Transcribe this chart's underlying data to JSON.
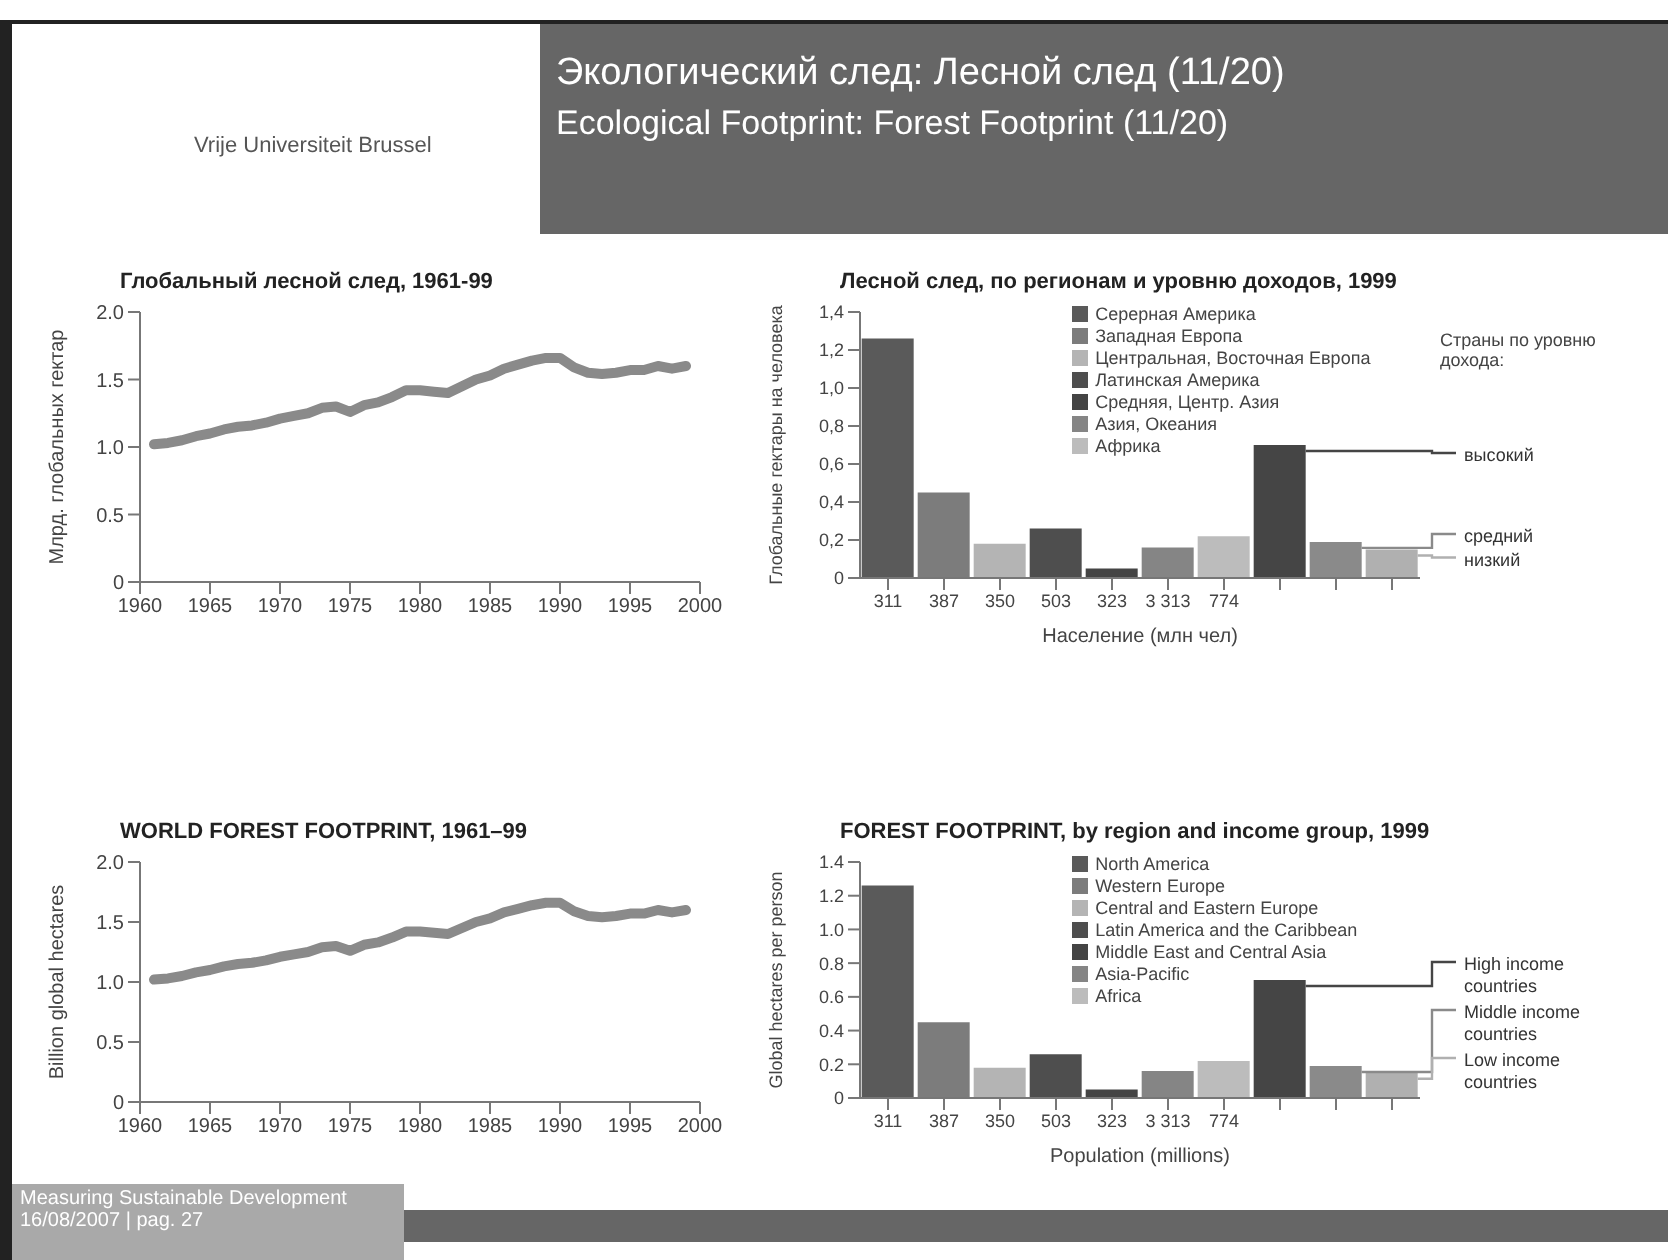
{
  "chart_data": [
    {
      "type": "line",
      "title": "Глобальный лесной след, 1961-99",
      "ylabel": "Млрд. глобальных гектар",
      "annotations": [
        "Vrije Universiteit Brussel",
        "Экологический след: Лесной след (11/20)",
        "Ecological Footprint: Forest Footprint (11/20)",
        "Measuring Sustainable Development",
        "16/08/2007  |  pag. 27"
      ],
      "x": [
        1961,
        1962,
        1963,
        1964,
        1965,
        1966,
        1967,
        1968,
        1969,
        1970,
        1971,
        1972,
        1973,
        1974,
        1975,
        1976,
        1977,
        1978,
        1979,
        1980,
        1981,
        1982,
        1983,
        1984,
        1985,
        1986,
        1987,
        1988,
        1989,
        1990,
        1991,
        1992,
        1993,
        1994,
        1995,
        1996,
        1997,
        1998,
        1999
      ],
      "series": [
        {
          "color": "#8a8a8a",
          "values": [
            1.02,
            1.03,
            1.05,
            1.08,
            1.1,
            1.13,
            1.15,
            1.16,
            1.18,
            1.21,
            1.23,
            1.25,
            1.29,
            1.3,
            1.26,
            1.31,
            1.33,
            1.37,
            1.42,
            1.42,
            1.41,
            1.4,
            1.45,
            1.5,
            1.53,
            1.58,
            1.61,
            1.64,
            1.66,
            1.66,
            1.59,
            1.55,
            1.54,
            1.55,
            1.57,
            1.57,
            1.6,
            1.58,
            1.6
          ]
        }
      ],
      "xlim": [
        1960,
        2000
      ],
      "xticks": [
        1960,
        1965,
        1970,
        1975,
        1980,
        1985,
        1990,
        1995,
        2000
      ],
      "ylim": [
        0,
        2
      ],
      "yticks": [
        0,
        0.5,
        {
          "value": 1,
          "label": "1.0"
        },
        1.5,
        {
          "value": 2,
          "label": "2.0"
        }
      ],
      "grid": false,
      "legend": false,
      "marker": "none",
      "line_style": "solid"
    },
    {
      "type": "bar",
      "title": "Лесной след, по регионам и уровню доходов, 1999",
      "xlabel": "Население (млн чел)",
      "ylabel": "Глобальные гектары на человека",
      "annotations": [
        "Страны по уровню дохода:"
      ],
      "categories": [
        "311",
        "387",
        "350",
        "503",
        "323",
        "3 313",
        "774",
        null,
        null,
        null
      ],
      "stacked": true,
      "series": [
        {
          "name": "Серерная Америка",
          "color": "#5a5a5a",
          "values": [
            1.26,
            null,
            null,
            null,
            null,
            null,
            null,
            null,
            null,
            null
          ]
        },
        {
          "name": "Западная Европа",
          "color": "#7c7c7c",
          "values": [
            null,
            0.45,
            null,
            null,
            null,
            null,
            null,
            null,
            null,
            null
          ]
        },
        {
          "name": "Центральная, Восточная Европа",
          "color": "#b4b4b4",
          "values": [
            null,
            null,
            0.18,
            null,
            null,
            null,
            null,
            null,
            null,
            null
          ]
        },
        {
          "name": "Латинская Америка",
          "color": "#4e4e4e",
          "values": [
            null,
            null,
            null,
            0.26,
            null,
            null,
            null,
            null,
            null,
            null
          ]
        },
        {
          "name": "Средняя, Центр. Азия",
          "color": "#444444",
          "values": [
            null,
            null,
            null,
            null,
            0.05,
            null,
            null,
            null,
            null,
            null
          ]
        },
        {
          "name": "Азия, Океания",
          "color": "#858585",
          "values": [
            null,
            null,
            null,
            null,
            null,
            0.16,
            null,
            null,
            null,
            null
          ]
        },
        {
          "name": "Африка",
          "color": "#bcbcbc",
          "values": [
            null,
            null,
            null,
            null,
            null,
            null,
            0.22,
            null,
            null,
            null
          ]
        },
        {
          "name": "высокий",
          "color": "#454545",
          "values": [
            null,
            null,
            null,
            null,
            null,
            null,
            null,
            0.7,
            null,
            null
          ]
        },
        {
          "name": "средний",
          "color": "#8a8a8a",
          "values": [
            null,
            null,
            null,
            null,
            null,
            null,
            null,
            null,
            0.19,
            null
          ]
        },
        {
          "name": "низкий",
          "color": "#b0b0b0",
          "values": [
            null,
            null,
            null,
            null,
            null,
            null,
            null,
            null,
            null,
            0.15
          ]
        }
      ],
      "ylim": [
        0,
        1.4
      ],
      "yticks": [
        0,
        {
          "value": 0.2,
          "label": "0,2"
        },
        {
          "value": 0.4,
          "label": "0,4"
        },
        {
          "value": 0.6,
          "label": "0,6"
        },
        {
          "value": 0.8,
          "label": "0,8"
        },
        {
          "value": 1,
          "label": "1,0"
        },
        {
          "value": 1.2,
          "label": "1,2"
        },
        {
          "value": 1.4,
          "label": "1,4"
        }
      ],
      "grid": false,
      "legend": "top"
    },
    {
      "type": "line",
      "title": "WORLD FOREST FOOTPRINT, 1961–99",
      "ylabel": "Billion global hectares",
      "x": [
        1961,
        1962,
        1963,
        1964,
        1965,
        1966,
        1967,
        1968,
        1969,
        1970,
        1971,
        1972,
        1973,
        1974,
        1975,
        1976,
        1977,
        1978,
        1979,
        1980,
        1981,
        1982,
        1983,
        1984,
        1985,
        1986,
        1987,
        1988,
        1989,
        1990,
        1991,
        1992,
        1993,
        1994,
        1995,
        1996,
        1997,
        1998,
        1999
      ],
      "series": [
        {
          "color": "#8a8a8a",
          "values": [
            1.02,
            1.03,
            1.05,
            1.08,
            1.1,
            1.13,
            1.15,
            1.16,
            1.18,
            1.21,
            1.23,
            1.25,
            1.29,
            1.3,
            1.26,
            1.31,
            1.33,
            1.37,
            1.42,
            1.42,
            1.41,
            1.4,
            1.45,
            1.5,
            1.53,
            1.58,
            1.61,
            1.64,
            1.66,
            1.66,
            1.59,
            1.55,
            1.54,
            1.55,
            1.57,
            1.57,
            1.6,
            1.58,
            1.6
          ]
        }
      ],
      "xlim": [
        1960,
        2000
      ],
      "xticks": [
        1960,
        1965,
        1970,
        1975,
        1980,
        1985,
        1990,
        1995,
        2000
      ],
      "ylim": [
        0,
        2
      ],
      "yticks": [
        0,
        0.5,
        {
          "value": 1,
          "label": "1.0"
        },
        1.5,
        {
          "value": 2,
          "label": "2.0"
        }
      ],
      "grid": false,
      "legend": false,
      "marker": "none",
      "line_style": "solid"
    },
    {
      "type": "bar",
      "title": "FOREST FOOTPRINT, by region and income group, 1999",
      "xlabel": "Population (millions)",
      "ylabel": "Global hectares per person",
      "categories": [
        "311",
        "387",
        "350",
        "503",
        "323",
        "3 313",
        "774",
        null,
        null,
        null
      ],
      "stacked": true,
      "series": [
        {
          "name": "North America",
          "color": "#5a5a5a",
          "values": [
            1.26,
            null,
            null,
            null,
            null,
            null,
            null,
            null,
            null,
            null
          ]
        },
        {
          "name": "Western Europe",
          "color": "#7c7c7c",
          "values": [
            null,
            0.45,
            null,
            null,
            null,
            null,
            null,
            null,
            null,
            null
          ]
        },
        {
          "name": "Central and Eastern Europe",
          "color": "#b4b4b4",
          "values": [
            null,
            null,
            0.18,
            null,
            null,
            null,
            null,
            null,
            null,
            null
          ]
        },
        {
          "name": "Latin America and the Caribbean",
          "color": "#4e4e4e",
          "values": [
            null,
            null,
            null,
            0.26,
            null,
            null,
            null,
            null,
            null,
            null
          ]
        },
        {
          "name": "Middle East and Central Asia",
          "color": "#444444",
          "values": [
            null,
            null,
            null,
            null,
            0.05,
            null,
            null,
            null,
            null,
            null
          ]
        },
        {
          "name": "Asia-Pacific",
          "color": "#858585",
          "values": [
            null,
            null,
            null,
            null,
            null,
            0.16,
            null,
            null,
            null,
            null
          ]
        },
        {
          "name": "Africa",
          "color": "#bcbcbc",
          "values": [
            null,
            null,
            null,
            null,
            null,
            null,
            0.22,
            null,
            null,
            null
          ]
        },
        {
          "name": "High income countries",
          "color": "#454545",
          "values": [
            null,
            null,
            null,
            null,
            null,
            null,
            null,
            0.7,
            null,
            null
          ]
        },
        {
          "name": "Middle income countries",
          "color": "#8a8a8a",
          "values": [
            null,
            null,
            null,
            null,
            null,
            null,
            null,
            null,
            0.19,
            null
          ]
        },
        {
          "name": "Low income countries",
          "color": "#b0b0b0",
          "values": [
            null,
            null,
            null,
            null,
            null,
            null,
            null,
            null,
            null,
            0.15
          ]
        }
      ],
      "ylim": [
        0,
        1.4
      ],
      "yticks": [
        0,
        0.2,
        0.4,
        0.6,
        0.8,
        {
          "value": 1,
          "label": "1.0"
        },
        1.2,
        1.4
      ],
      "grid": false,
      "legend": "top"
    }
  ]
}
